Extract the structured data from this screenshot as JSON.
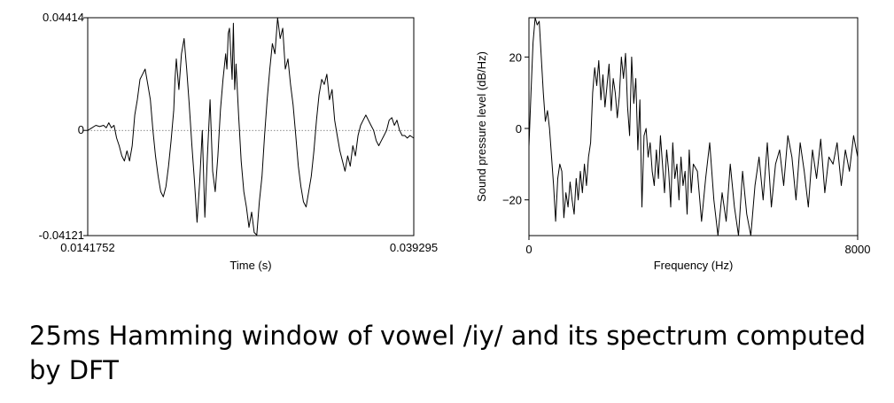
{
  "chart_data": [
    {
      "type": "line",
      "title": "",
      "xlabel": "Time (s)",
      "ylabel": "",
      "xlim": [
        0.0141752,
        0.039295
      ],
      "ylim": [
        -0.04121,
        0.04414
      ],
      "x_tick_labels": [
        "0.0141752",
        "0.039295"
      ],
      "y_tick_labels": [
        "0.04414",
        "0",
        "-0.04121"
      ],
      "zero_line": "dotted",
      "grid": false,
      "series": [
        {
          "x": [
            0.01418,
            0.0145,
            0.0148,
            0.0151,
            0.0154,
            0.0156,
            0.0158,
            0.016,
            0.0162,
            0.0164,
            0.0166,
            0.0168,
            0.017,
            0.0172,
            0.0174,
            0.0176,
            0.0178,
            0.018,
            0.0182,
            0.0184,
            0.0186,
            0.0188,
            0.019,
            0.0192,
            0.0194,
            0.0196,
            0.0198,
            0.02,
            0.0202,
            0.0204,
            0.0206,
            0.0208,
            0.0209,
            0.021,
            0.0211,
            0.0212,
            0.0214,
            0.0216,
            0.0218,
            0.022,
            0.0222,
            0.0224,
            0.0226,
            0.0228,
            0.023,
            0.0232,
            0.0234,
            0.0236,
            0.0238,
            0.024,
            0.0242,
            0.0244,
            0.0246,
            0.0248,
            0.0249,
            0.025,
            0.0251,
            0.0252,
            0.0253,
            0.0254,
            0.0255,
            0.0256,
            0.0258,
            0.026,
            0.0262,
            0.0264,
            0.0266,
            0.0268,
            0.027,
            0.0272,
            0.0274,
            0.0276,
            0.0278,
            0.028,
            0.0282,
            0.0284,
            0.0286,
            0.0288,
            0.029,
            0.0292,
            0.0294,
            0.0296,
            0.0298,
            0.03,
            0.0302,
            0.0304,
            0.0306,
            0.0308,
            0.031,
            0.0312,
            0.0314,
            0.0316,
            0.0318,
            0.032,
            0.0322,
            0.0324,
            0.0326,
            0.0328,
            0.033,
            0.0332,
            0.0334,
            0.0336,
            0.0338,
            0.034,
            0.0342,
            0.0344,
            0.0346,
            0.0348,
            0.035,
            0.0352,
            0.0354,
            0.0356,
            0.0358,
            0.036,
            0.0362,
            0.0364,
            0.0366,
            0.0368,
            0.037,
            0.0372,
            0.0374,
            0.0376,
            0.0378,
            0.038,
            0.0382,
            0.0384,
            0.0386,
            0.0388,
            0.039,
            0.03929
          ],
          "y": [
            0.0,
            0.001,
            0.002,
            0.0015,
            0.002,
            0.001,
            0.003,
            0.001,
            0.002,
            -0.003,
            -0.006,
            -0.01,
            -0.012,
            -0.008,
            -0.012,
            -0.006,
            0.006,
            0.012,
            0.02,
            0.022,
            0.024,
            0.018,
            0.012,
            0.0,
            -0.01,
            -0.018,
            -0.024,
            -0.026,
            -0.022,
            -0.014,
            -0.004,
            0.008,
            0.02,
            0.028,
            0.022,
            0.016,
            0.03,
            0.036,
            0.024,
            0.01,
            -0.006,
            -0.02,
            -0.036,
            -0.02,
            0.0,
            -0.034,
            -0.01,
            0.012,
            -0.016,
            -0.024,
            -0.01,
            0.008,
            0.02,
            0.03,
            0.024,
            0.038,
            0.04,
            0.03,
            0.02,
            0.042,
            0.016,
            0.026,
            0.006,
            -0.012,
            -0.024,
            -0.03,
            -0.038,
            -0.032,
            -0.04,
            -0.041,
            -0.028,
            -0.018,
            -0.002,
            0.012,
            0.024,
            0.034,
            0.03,
            0.0441,
            0.036,
            0.04,
            0.024,
            0.028,
            0.018,
            0.01,
            -0.002,
            -0.014,
            -0.022,
            -0.028,
            -0.03,
            -0.024,
            -0.018,
            -0.008,
            0.004,
            0.014,
            0.02,
            0.018,
            0.022,
            0.012,
            0.016,
            0.004,
            -0.002,
            -0.008,
            -0.012,
            -0.016,
            -0.01,
            -0.014,
            -0.006,
            -0.01,
            -0.002,
            0.002,
            0.004,
            0.006,
            0.004,
            0.002,
            0.0,
            -0.004,
            -0.006,
            -0.004,
            -0.002,
            0.0,
            0.004,
            0.005,
            0.002,
            0.004,
            0.0,
            -0.002,
            -0.002,
            -0.003,
            -0.002,
            -0.003
          ]
        }
      ]
    },
    {
      "type": "line",
      "title": "",
      "xlabel": "Frequency (Hz)",
      "ylabel": "Sound pressure level (dB/Hz)",
      "xlim": [
        0,
        8000
      ],
      "ylim": [
        -30,
        31
      ],
      "x_tick_labels": [
        "0",
        "8000"
      ],
      "y_tick_labels": [
        "20",
        "0",
        "−20"
      ],
      "y_ticks": [
        20,
        0,
        -20
      ],
      "grid": false,
      "series": [
        {
          "x": [
            0,
            50,
            100,
            150,
            200,
            250,
            300,
            350,
            400,
            450,
            500,
            550,
            600,
            650,
            700,
            750,
            800,
            850,
            900,
            950,
            1000,
            1050,
            1100,
            1150,
            1200,
            1250,
            1300,
            1350,
            1400,
            1450,
            1500,
            1550,
            1600,
            1650,
            1700,
            1750,
            1800,
            1850,
            1900,
            1950,
            2000,
            2050,
            2100,
            2150,
            2200,
            2250,
            2300,
            2350,
            2400,
            2450,
            2500,
            2550,
            2600,
            2650,
            2700,
            2750,
            2800,
            2850,
            2900,
            2950,
            3000,
            3050,
            3100,
            3150,
            3200,
            3250,
            3300,
            3350,
            3400,
            3450,
            3500,
            3550,
            3600,
            3650,
            3700,
            3750,
            3800,
            3850,
            3900,
            3950,
            4000,
            4100,
            4200,
            4300,
            4400,
            4500,
            4600,
            4700,
            4800,
            4900,
            5000,
            5100,
            5200,
            5300,
            5400,
            5500,
            5600,
            5700,
            5800,
            5900,
            6000,
            6100,
            6200,
            6300,
            6400,
            6500,
            6600,
            6700,
            6800,
            6900,
            7000,
            7100,
            7200,
            7300,
            7400,
            7500,
            7600,
            7700,
            7800,
            7900,
            8000
          ],
          "y": [
            -5,
            10,
            24,
            31,
            29,
            30,
            20,
            10,
            2,
            5,
            0,
            -8,
            -16,
            -26,
            -14,
            -10,
            -12,
            -25,
            -18,
            -22,
            -15,
            -20,
            -24,
            -14,
            -20,
            -12,
            -18,
            -10,
            -16,
            -8,
            -4,
            10,
            17,
            12,
            19,
            8,
            15,
            6,
            12,
            18,
            5,
            14,
            10,
            3,
            9,
            20,
            14,
            21,
            6,
            -2,
            20,
            7,
            14,
            -6,
            8,
            -22,
            -2,
            0,
            -8,
            -4,
            -12,
            -16,
            -6,
            -14,
            -2,
            -10,
            -18,
            -6,
            -12,
            -22,
            -4,
            -14,
            -10,
            -20,
            -8,
            -16,
            -12,
            -24,
            -6,
            -18,
            -10,
            -12,
            -26,
            -14,
            -4,
            -20,
            -30,
            -18,
            -26,
            -10,
            -22,
            -30,
            -12,
            -24,
            -30,
            -16,
            -8,
            -20,
            -4,
            -22,
            -10,
            -6,
            -16,
            -2,
            -8,
            -20,
            -4,
            -12,
            -22,
            -6,
            -14,
            -3,
            -18,
            -8,
            -10,
            -4,
            -16,
            -6,
            -12,
            -2,
            -8
          ]
        }
      ]
    }
  ],
  "caption": "25ms Hamming window of vowel /iy/ and its spectrum computed by DFT"
}
